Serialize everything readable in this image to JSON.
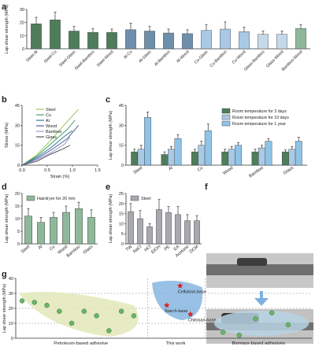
{
  "panel_letters": {
    "a": "a",
    "b": "b",
    "c": "c",
    "d": "d",
    "e": "e",
    "f": "f",
    "g": "g"
  },
  "colors": {
    "dark_green": "#4f7d5c",
    "green": "#8fb89a",
    "light_green": "#c7dfc8",
    "blue1": "#6e9fc4",
    "blue2": "#a9c9e4",
    "blue3": "#8fc3e7",
    "gray": "#a8a8b0",
    "dark_blue": "#2f5f8a"
  },
  "chart_data": [
    {
      "id": "a",
      "type": "bar",
      "ylabel": "Lap shear strength (MPa)",
      "ylim": [
        0,
        30
      ],
      "yticks": [
        0,
        10,
        20,
        30
      ],
      "categories": [
        "Steel-Al",
        "Steel-Cu",
        "Steel-Glass",
        "Steel-Bamboo",
        "Steel-Wood",
        "Al-Cu",
        "Al-Glass",
        "Al-Bamboo",
        "Al-Wood",
        "Cu-Glass",
        "Cu-Bamboo",
        "Cu-Wood",
        "Glass-Bamboo",
        "Glass-Wood",
        "Bamboo-Wood"
      ],
      "values": [
        19,
        22,
        13.5,
        12.5,
        12.5,
        14.5,
        13.5,
        12,
        11.5,
        14,
        15,
        13,
        11,
        11,
        15.5
      ],
      "errors": [
        5,
        6,
        3.5,
        3,
        2.5,
        5,
        3.5,
        3,
        3,
        4.5,
        5.5,
        3.5,
        2.5,
        2.5,
        3
      ]
    },
    {
      "id": "b",
      "type": "line",
      "xlabel": "Strain (%)",
      "ylabel": "Stress (MPa)",
      "xlim": [
        0,
        1.5
      ],
      "ylim": [
        0,
        45
      ],
      "xticks": [
        0,
        0.5,
        1.0,
        1.5
      ],
      "yticks": [
        0,
        15,
        30,
        45
      ],
      "series": [
        {
          "name": "Steel",
          "color": "#9ac860",
          "points": [
            [
              0,
              0
            ],
            [
              0.3,
              8
            ],
            [
              0.6,
              20
            ],
            [
              0.9,
              33
            ],
            [
              1.12,
              42
            ]
          ]
        },
        {
          "name": "Cu",
          "color": "#49a36c",
          "points": [
            [
              0,
              0
            ],
            [
              0.3,
              7
            ],
            [
              0.6,
              17
            ],
            [
              0.9,
              27
            ],
            [
              1.05,
              34
            ]
          ]
        },
        {
          "name": "Al",
          "color": "#2f7b8f",
          "points": [
            [
              0,
              0
            ],
            [
              0.3,
              6
            ],
            [
              0.6,
              14
            ],
            [
              0.85,
              22
            ],
            [
              1.0,
              26
            ]
          ]
        },
        {
          "name": "Wood",
          "color": "#5a5aa8",
          "points": [
            [
              0,
              0
            ],
            [
              0.3,
              5
            ],
            [
              0.6,
              12
            ],
            [
              0.9,
              20
            ],
            [
              1.12,
              30
            ]
          ]
        },
        {
          "name": "Bamboo",
          "color": "#9e9ad0",
          "points": [
            [
              0,
              0
            ],
            [
              0.3,
              4
            ],
            [
              0.6,
              10
            ],
            [
              0.85,
              16
            ],
            [
              0.95,
              21
            ]
          ]
        },
        {
          "name": "Glass",
          "color": "#555555",
          "points": [
            [
              0,
              0
            ],
            [
              0.3,
              3
            ],
            [
              0.55,
              8
            ],
            [
              0.8,
              12
            ],
            [
              0.95,
              15
            ]
          ]
        }
      ]
    },
    {
      "id": "c",
      "type": "bar",
      "ylabel": "Lap shear strength (MPa)",
      "ylim": [
        0,
        45
      ],
      "yticks": [
        0,
        15,
        30,
        45
      ],
      "categories": [
        "Steel",
        "Al",
        "Cu",
        "Wood",
        "Bamboo",
        "Glass"
      ],
      "series": [
        {
          "name": "Room temperature for 3 days",
          "color": "#4f7d5c",
          "values": [
            10,
            8,
            10,
            10,
            10,
            10
          ],
          "errors": [
            2,
            2,
            2,
            2,
            2,
            1.5
          ]
        },
        {
          "name": "Room temperature for 10 days",
          "color": "#a9c9e4",
          "values": [
            12,
            12,
            15,
            12,
            13,
            12
          ],
          "errors": [
            3,
            2,
            3,
            2,
            2,
            2
          ]
        },
        {
          "name": "Room temperature for 1 year",
          "color": "#8fc3e7",
          "values": [
            36,
            20,
            26,
            15,
            18,
            18
          ],
          "errors": [
            4,
            3,
            5,
            2,
            2,
            3
          ]
        }
      ]
    },
    {
      "id": "d",
      "type": "bar",
      "ylabel": "Lap shear strength (MPa)",
      "ylim": [
        0,
        20
      ],
      "yticks": [
        0,
        5,
        10,
        15,
        20
      ],
      "categories": [
        "Steel",
        "Al",
        "Cu",
        "Wood",
        "Bamboo",
        "Glass"
      ],
      "series": [
        {
          "name": "Hairdryer for 20 min",
          "color": "#8fb89a"
        }
      ],
      "values": [
        11,
        8.5,
        10.5,
        12.5,
        14,
        10.5
      ],
      "errors": [
        3,
        2,
        2,
        2.5,
        2.5,
        3
      ]
    },
    {
      "id": "e",
      "type": "bar",
      "ylabel": "Lap shear strength (MPa)",
      "ylim": [
        0,
        25
      ],
      "yticks": [
        0,
        5,
        10,
        15,
        20,
        25
      ],
      "categories": [
        "TW",
        "NaCl",
        "HCl",
        "EtOH",
        "PE",
        "EA",
        "Acetone",
        "DCM"
      ],
      "series": [
        {
          "name": "Steel",
          "color": "#a8a8b0"
        }
      ],
      "values": [
        16,
        12.5,
        8.5,
        17,
        15.5,
        14.5,
        11.5,
        11.5
      ],
      "errors": [
        4,
        4,
        1.5,
        5,
        3,
        4,
        3,
        2.5
      ]
    },
    {
      "id": "g",
      "type": "scatter",
      "ylabel": "Lap shear strength (MPa)",
      "ylim": [
        0,
        40
      ],
      "yticks": [
        0,
        10,
        20,
        30,
        40
      ],
      "groups": [
        {
          "name": "Petroleum-based adhesive",
          "points": [
            [
              1,
              25
            ],
            [
              2,
              24
            ],
            [
              3,
              22
            ],
            [
              4,
              18
            ],
            [
              5,
              10
            ],
            [
              6,
              18
            ],
            [
              7,
              15
            ],
            [
              8,
              5
            ],
            [
              9,
              18
            ],
            [
              10,
              15
            ]
          ]
        },
        {
          "name": "This work",
          "points": [
            {
              "label": "Cellulose-base",
              "y": 35
            },
            {
              "label": "Starch-base",
              "y": 22
            },
            {
              "label": "Chitosan-base",
              "y": 16
            }
          ]
        },
        {
          "name": "Biomass-based adhesives",
          "points": [
            [
              1,
              4
            ],
            [
              2,
              2
            ],
            [
              3,
              13
            ],
            [
              4,
              17
            ],
            [
              5,
              9
            ]
          ]
        }
      ]
    }
  ]
}
